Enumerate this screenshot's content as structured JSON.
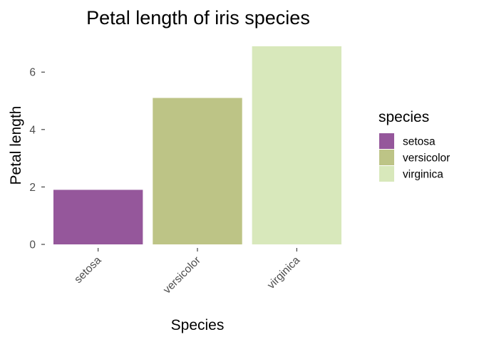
{
  "chart_data": {
    "type": "bar",
    "title": "Petal length of iris species",
    "xlabel": "Species",
    "ylabel": "Petal length",
    "categories": [
      "setosa",
      "versicolor",
      "virginica"
    ],
    "values": [
      1.9,
      5.1,
      6.9
    ],
    "ylim": [
      0,
      7
    ],
    "yticks": [
      0,
      2,
      4,
      6
    ],
    "colors": [
      "#95579b",
      "#bdc486",
      "#d8e8bb"
    ],
    "grid": false,
    "legend": {
      "title": "species",
      "placement": "right",
      "entries": [
        "setosa",
        "versicolor",
        "virginica"
      ]
    }
  }
}
